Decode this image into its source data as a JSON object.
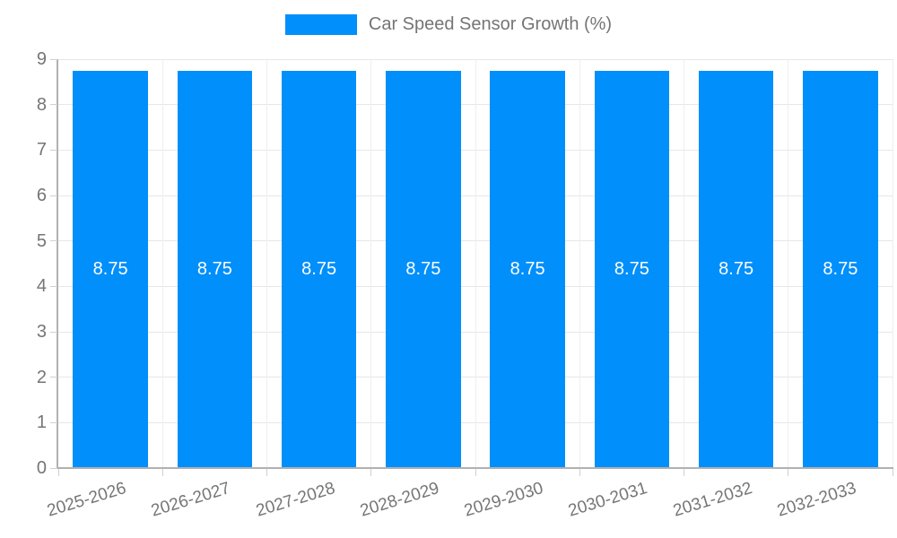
{
  "chart_data": {
    "type": "bar",
    "title": "Car Speed Sensor Growth (%)",
    "categories": [
      "2025-2026",
      "2026-2027",
      "2027-2028",
      "2028-2029",
      "2029-2030",
      "2030-2031",
      "2031-2032",
      "2032-2033"
    ],
    "values": [
      8.75,
      8.75,
      8.75,
      8.75,
      8.75,
      8.75,
      8.75,
      8.75
    ],
    "value_labels": [
      "8.75",
      "8.75",
      "8.75",
      "8.75",
      "8.75",
      "8.75",
      "8.75",
      "8.75"
    ],
    "xlabel": "",
    "ylabel": "",
    "ylim": [
      0,
      9
    ],
    "ytick_step": 1,
    "ytick_labels": [
      "0",
      "1",
      "2",
      "3",
      "4",
      "5",
      "6",
      "7",
      "8",
      "9"
    ],
    "grid": "on",
    "legend_position": "top"
  },
  "colors": {
    "bar": "#008FFB",
    "grid_h": "#e7e7e7",
    "grid_v": "#efefef",
    "axis": "#b1b1b1",
    "tick": "#d0d0d0",
    "label_text": "#757575",
    "legend_text": "#757575",
    "value_label_text": "#ffffff"
  }
}
